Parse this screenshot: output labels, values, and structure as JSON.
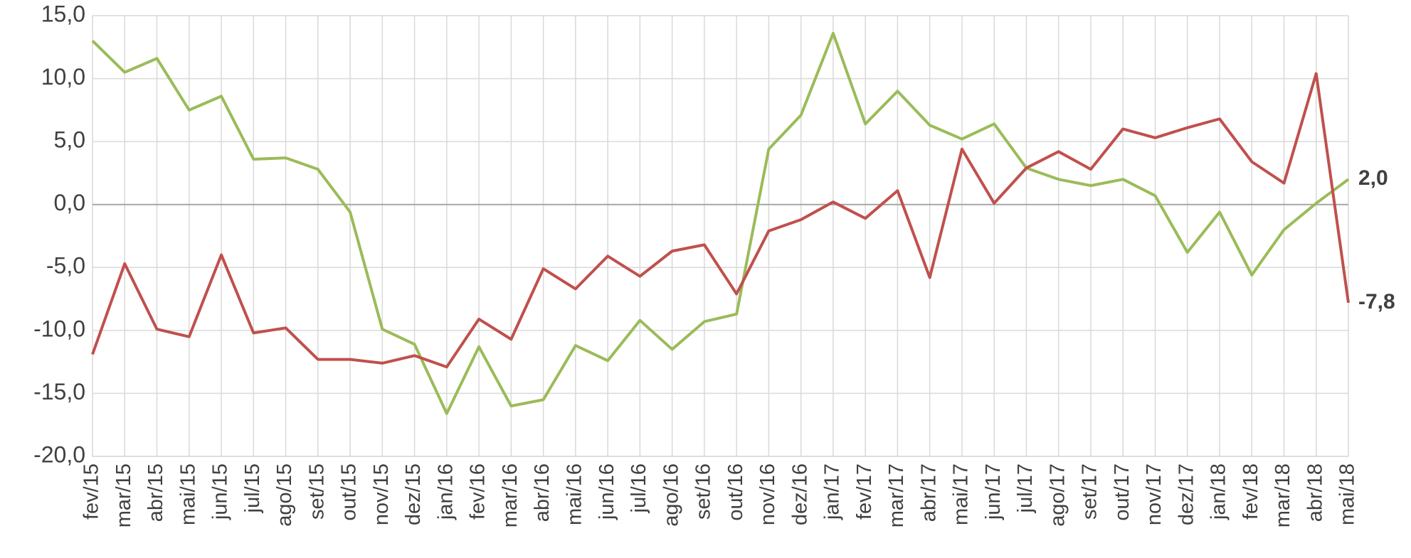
{
  "chart_data": {
    "type": "line",
    "categories": [
      "fev/15",
      "mar/15",
      "abr/15",
      "mai/15",
      "jun/15",
      "jul/15",
      "ago/15",
      "set/15",
      "out/15",
      "nov/15",
      "dez/15",
      "jan/16",
      "fev/16",
      "mar/16",
      "abr/16",
      "mai/16",
      "jun/16",
      "jul/16",
      "ago/16",
      "set/16",
      "out/16",
      "nov/16",
      "dez/16",
      "jan/17",
      "fev/17",
      "mar/17",
      "abr/17",
      "mai/17",
      "jun/17",
      "jul/17",
      "ago/17",
      "set/17",
      "out/17",
      "nov/17",
      "dez/17",
      "jan/18",
      "fev/18",
      "mar/18",
      "abr/18",
      "mai/18"
    ],
    "series": [
      {
        "color": "#9bbb59",
        "values": [
          13.0,
          10.5,
          11.6,
          7.5,
          8.6,
          3.6,
          3.7,
          2.8,
          -0.6,
          -9.9,
          -11.1,
          -16.6,
          -11.3,
          -16.0,
          -15.5,
          -11.2,
          -12.4,
          -9.2,
          -11.5,
          -9.3,
          -8.7,
          4.4,
          7.1,
          13.6,
          6.4,
          9.0,
          6.3,
          5.2,
          6.4,
          2.9,
          2.0,
          1.5,
          2.0,
          0.7,
          -3.8,
          -0.6,
          -5.6,
          -2.0,
          0.1,
          2.0
        ],
        "value_labels": [
          null,
          null,
          null,
          null,
          null,
          null,
          null,
          null,
          null,
          null,
          null,
          null,
          null,
          null,
          null,
          null,
          null,
          null,
          null,
          null,
          null,
          null,
          null,
          null,
          null,
          null,
          null,
          null,
          null,
          null,
          null,
          null,
          null,
          null,
          null,
          null,
          null,
          null,
          null,
          "2,0"
        ]
      },
      {
        "color": "#c0504d",
        "values": [
          -11.9,
          -4.7,
          -9.9,
          -10.5,
          -4.0,
          -10.2,
          -9.8,
          -12.3,
          -12.3,
          -12.6,
          -12.0,
          -12.9,
          -9.1,
          -10.7,
          -5.1,
          -6.7,
          -4.1,
          -5.7,
          -3.7,
          -3.2,
          -7.1,
          -2.1,
          -1.2,
          0.2,
          -1.1,
          1.1,
          -5.8,
          4.4,
          0.1,
          2.9,
          4.2,
          2.8,
          6.0,
          5.3,
          6.1,
          6.8,
          3.4,
          1.7,
          10.4,
          -7.8
        ],
        "value_labels": [
          null,
          null,
          null,
          null,
          null,
          null,
          null,
          null,
          null,
          null,
          null,
          null,
          null,
          null,
          null,
          null,
          null,
          null,
          null,
          null,
          null,
          null,
          null,
          null,
          null,
          null,
          null,
          null,
          null,
          null,
          null,
          null,
          null,
          null,
          null,
          null,
          null,
          null,
          null,
          "-7,8"
        ]
      }
    ],
    "ylim": [
      -20,
      15
    ],
    "yticks": [
      {
        "value": -20,
        "label": "-20,0"
      },
      {
        "value": -15,
        "label": "-15,0"
      },
      {
        "value": -10,
        "label": "-10,0"
      },
      {
        "value": -5,
        "label": "-5,0"
      },
      {
        "value": 0,
        "label": "0,0"
      },
      {
        "value": 5,
        "label": "5,0"
      },
      {
        "value": 10,
        "label": "10,0"
      },
      {
        "value": 15,
        "label": "15,0"
      }
    ],
    "grid": true
  }
}
